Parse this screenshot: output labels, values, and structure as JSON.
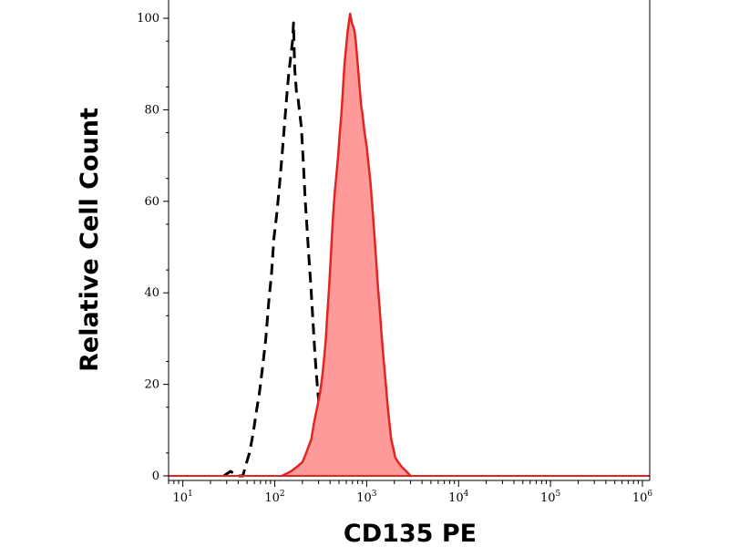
{
  "chart_data": {
    "type": "area",
    "title": "",
    "xlabel": "CD135 PE",
    "ylabel": "Relative Cell Count",
    "x_scale": "log",
    "xlim": [
      7,
      1200000
    ],
    "ylim": [
      -1,
      104
    ],
    "x_ticks": [
      {
        "value": 10,
        "base": "10",
        "exp": "1"
      },
      {
        "value": 100,
        "base": "10",
        "exp": "2"
      },
      {
        "value": 1000,
        "base": "10",
        "exp": "3"
      },
      {
        "value": 10000,
        "base": "10",
        "exp": "4"
      },
      {
        "value": 100000,
        "base": "10",
        "exp": "5"
      },
      {
        "value": 1000000,
        "base": "10",
        "exp": "6"
      }
    ],
    "y_ticks": [
      {
        "value": 0,
        "label": "0"
      },
      {
        "value": 20,
        "label": "20"
      },
      {
        "value": 40,
        "label": "40"
      },
      {
        "value": 60,
        "label": "60"
      },
      {
        "value": 80,
        "label": "80"
      },
      {
        "value": 100,
        "label": "100"
      }
    ],
    "grid": false,
    "series": [
      {
        "style": "dashed",
        "color": "#000000",
        "filled": false,
        "points": [
          [
            28,
            0
          ],
          [
            33,
            1
          ],
          [
            40,
            0
          ],
          [
            45,
            0
          ],
          [
            48,
            2
          ],
          [
            53,
            5
          ],
          [
            58,
            9
          ],
          [
            63,
            14
          ],
          [
            68,
            18
          ],
          [
            74,
            24
          ],
          [
            80,
            30
          ],
          [
            86,
            38
          ],
          [
            92,
            44
          ],
          [
            98,
            52
          ],
          [
            105,
            57
          ],
          [
            112,
            63
          ],
          [
            120,
            70
          ],
          [
            128,
            77
          ],
          [
            135,
            83
          ],
          [
            142,
            88
          ],
          [
            150,
            92
          ],
          [
            156,
            95
          ],
          [
            160,
            99
          ],
          [
            165,
            89
          ],
          [
            172,
            84
          ],
          [
            178,
            83
          ],
          [
            185,
            80
          ],
          [
            195,
            76
          ],
          [
            205,
            68
          ],
          [
            215,
            60
          ],
          [
            225,
            54
          ],
          [
            235,
            48
          ],
          [
            248,
            41
          ],
          [
            260,
            34
          ],
          [
            275,
            26
          ],
          [
            290,
            20
          ],
          [
            305,
            15
          ],
          [
            320,
            12
          ],
          [
            340,
            9
          ],
          [
            360,
            6
          ],
          [
            380,
            3
          ],
          [
            400,
            1
          ],
          [
            430,
            0
          ]
        ]
      },
      {
        "style": "solid",
        "color": "#e32424",
        "fill": "#ff9a9a",
        "filled": true,
        "points": [
          [
            120,
            0
          ],
          [
            150,
            1
          ],
          [
            175,
            2
          ],
          [
            200,
            3
          ],
          [
            220,
            5
          ],
          [
            250,
            8
          ],
          [
            270,
            12
          ],
          [
            290,
            15
          ],
          [
            310,
            18
          ],
          [
            330,
            22
          ],
          [
            345,
            26
          ],
          [
            360,
            30
          ],
          [
            375,
            36
          ],
          [
            390,
            41
          ],
          [
            405,
            47
          ],
          [
            420,
            53
          ],
          [
            435,
            58
          ],
          [
            450,
            62
          ],
          [
            470,
            66
          ],
          [
            490,
            70
          ],
          [
            510,
            75
          ],
          [
            530,
            79
          ],
          [
            550,
            84
          ],
          [
            565,
            88
          ],
          [
            580,
            91
          ],
          [
            600,
            94
          ],
          [
            620,
            97
          ],
          [
            640,
            99
          ],
          [
            660,
            101
          ],
          [
            690,
            99
          ],
          [
            720,
            98
          ],
          [
            740,
            97
          ],
          [
            760,
            95
          ],
          [
            790,
            91
          ],
          [
            830,
            86
          ],
          [
            870,
            81
          ],
          [
            900,
            79
          ],
          [
            950,
            75
          ],
          [
            1000,
            72
          ],
          [
            1050,
            68
          ],
          [
            1100,
            64
          ],
          [
            1150,
            59
          ],
          [
            1200,
            54
          ],
          [
            1260,
            48
          ],
          [
            1320,
            42
          ],
          [
            1380,
            37
          ],
          [
            1450,
            31
          ],
          [
            1520,
            26
          ],
          [
            1600,
            21
          ],
          [
            1680,
            16
          ],
          [
            1760,
            12
          ],
          [
            1850,
            8
          ],
          [
            1950,
            6
          ],
          [
            2050,
            4
          ],
          [
            2200,
            3
          ],
          [
            2400,
            2
          ],
          [
            2700,
            1
          ],
          [
            3000,
            0
          ]
        ]
      }
    ]
  }
}
